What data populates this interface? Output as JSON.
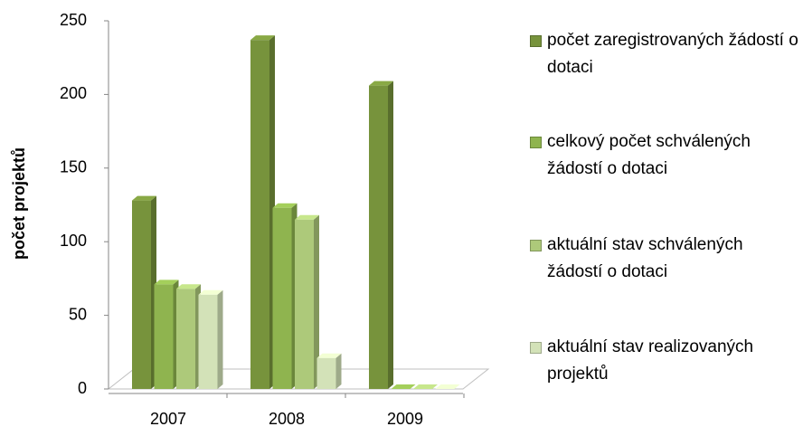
{
  "chart_data": {
    "type": "bar3d",
    "y_label": "počet projektů",
    "categories": [
      "2007",
      "2008",
      "2009"
    ],
    "series": [
      {
        "name": "počet zaregistrovaných žádostí o dotaci",
        "color": "#77933c",
        "values": [
          128,
          237,
          206
        ]
      },
      {
        "name": "celkový počet schválených žádostí o dotaci",
        "color": "#8fb44f",
        "values": [
          71,
          123,
          0
        ]
      },
      {
        "name": "aktuální stav schválených žádostí o dotaci",
        "color": "#adc97a",
        "values": [
          68,
          115,
          0
        ]
      },
      {
        "name": "aktuální stav realizovaných projektů",
        "color": "#d3e2b8",
        "values": [
          64,
          21,
          0
        ]
      }
    ],
    "ylim": [
      0,
      250
    ],
    "yticks": [
      0,
      50,
      100,
      150,
      200,
      250
    ],
    "grid": false
  }
}
